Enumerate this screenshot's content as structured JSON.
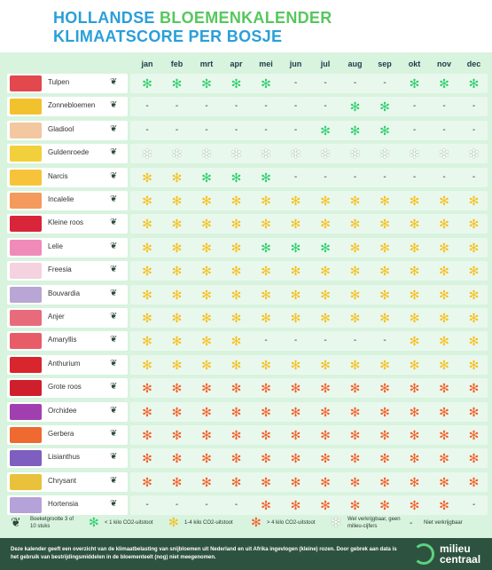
{
  "title": {
    "line1_a": "HOLLANDSE",
    "line1_b": "BLOEMENKALENDER",
    "line2": "KLIMAATSCORE PER BOSJE"
  },
  "months": [
    "jan",
    "feb",
    "mrt",
    "apr",
    "mei",
    "jun",
    "jul",
    "aug",
    "sep",
    "okt",
    "nov",
    "dec"
  ],
  "flowers": [
    {
      "name": "Tulpen",
      "thumb": "#e2484d",
      "bouquet": "3",
      "s": [
        "g",
        "g",
        "g",
        "g",
        "g",
        "-",
        "-",
        "-",
        "-",
        "g",
        "g",
        "g"
      ]
    },
    {
      "name": "Zonnebloemen",
      "thumb": "#f2c12e",
      "bouquet": "3",
      "s": [
        "-",
        "-",
        "-",
        "-",
        "-",
        "-",
        "-",
        "g",
        "g",
        "-",
        "-",
        "-"
      ]
    },
    {
      "name": "Gladiool",
      "thumb": "#f3c7a0",
      "bouquet": "3",
      "s": [
        "-",
        "-",
        "-",
        "-",
        "-",
        "-",
        "g",
        "g",
        "g",
        "-",
        "-",
        "-"
      ]
    },
    {
      "name": "Guldenroede",
      "thumb": "#f2d03c",
      "bouquet": "10",
      "s": [
        "w",
        "w",
        "w",
        "w",
        "w",
        "w",
        "w",
        "w",
        "w",
        "w",
        "w",
        "w"
      ]
    },
    {
      "name": "Narcis",
      "thumb": "#f6c33a",
      "bouquet": "10",
      "s": [
        "y",
        "y",
        "g",
        "g",
        "g",
        "-",
        "-",
        "-",
        "-",
        "-",
        "-",
        "-"
      ]
    },
    {
      "name": "Incalelie",
      "thumb": "#f39a5c",
      "bouquet": "10",
      "s": [
        "y",
        "y",
        "y",
        "y",
        "y",
        "y",
        "y",
        "y",
        "y",
        "y",
        "y",
        "y"
      ]
    },
    {
      "name": "Kleine roos",
      "thumb": "#d9253a",
      "bouquet": "10",
      "s": [
        "y",
        "y",
        "y",
        "y",
        "y",
        "y",
        "y",
        "y",
        "y",
        "y",
        "y",
        "y"
      ]
    },
    {
      "name": "Lelie",
      "thumb": "#f08ab8",
      "bouquet": "3",
      "s": [
        "y",
        "y",
        "y",
        "y",
        "g",
        "g",
        "g",
        "y",
        "y",
        "y",
        "y",
        "y"
      ]
    },
    {
      "name": "Freesia",
      "thumb": "#f4d2e0",
      "bouquet": "10",
      "s": [
        "y",
        "y",
        "y",
        "y",
        "y",
        "y",
        "y",
        "y",
        "y",
        "y",
        "y",
        "y"
      ]
    },
    {
      "name": "Bouvardia",
      "thumb": "#b9a6d4",
      "bouquet": "10",
      "s": [
        "y",
        "y",
        "y",
        "y",
        "y",
        "y",
        "y",
        "y",
        "y",
        "y",
        "y",
        "y"
      ]
    },
    {
      "name": "Anjer",
      "thumb": "#e86b7c",
      "bouquet": "10",
      "s": [
        "y",
        "y",
        "y",
        "y",
        "y",
        "y",
        "y",
        "y",
        "y",
        "y",
        "y",
        "y"
      ]
    },
    {
      "name": "Amaryllis",
      "thumb": "#e85c68",
      "bouquet": "3",
      "s": [
        "y",
        "y",
        "y",
        "y",
        "-",
        "-",
        "-",
        "-",
        "-",
        "y",
        "y",
        "y"
      ]
    },
    {
      "name": "Anthurium",
      "thumb": "#d8252e",
      "bouquet": "3",
      "s": [
        "y",
        "y",
        "y",
        "y",
        "y",
        "y",
        "y",
        "y",
        "y",
        "y",
        "y",
        "y"
      ]
    },
    {
      "name": "Grote roos",
      "thumb": "#cf1f2d",
      "bouquet": "10",
      "s": [
        "o",
        "o",
        "o",
        "o",
        "o",
        "o",
        "o",
        "o",
        "o",
        "o",
        "o",
        "o"
      ]
    },
    {
      "name": "Orchidee",
      "thumb": "#a23fb0",
      "bouquet": "3",
      "s": [
        "o",
        "o",
        "o",
        "o",
        "o",
        "o",
        "o",
        "o",
        "o",
        "o",
        "o",
        "o"
      ]
    },
    {
      "name": "Gerbera",
      "thumb": "#ef6a30",
      "bouquet": "10",
      "s": [
        "o",
        "o",
        "o",
        "o",
        "o",
        "o",
        "o",
        "o",
        "o",
        "o",
        "o",
        "o"
      ]
    },
    {
      "name": "Lisianthus",
      "thumb": "#7e5fbf",
      "bouquet": "10",
      "s": [
        "o",
        "o",
        "o",
        "o",
        "o",
        "o",
        "o",
        "o",
        "o",
        "o",
        "o",
        "o"
      ]
    },
    {
      "name": "Chrysant",
      "thumb": "#e9c13a",
      "bouquet": "10",
      "s": [
        "o",
        "o",
        "o",
        "o",
        "o",
        "o",
        "o",
        "o",
        "o",
        "o",
        "o",
        "o"
      ]
    },
    {
      "name": "Hortensia",
      "thumb": "#b4a2d8",
      "bouquet": "3",
      "s": [
        "-",
        "-",
        "-",
        "-",
        "o",
        "o",
        "o",
        "o",
        "o",
        "o",
        "o",
        "-"
      ]
    }
  ],
  "symbols": {
    "g": "✻",
    "y": "✻",
    "o": "✻",
    "w": "✻",
    "-": "-"
  },
  "colors": {
    "green": "#2fcf6e",
    "yellow": "#f6c01d",
    "orange": "#f4602a",
    "panel": "#d8f3de",
    "footer": "#2d5340"
  },
  "legend": {
    "bouquet_label": "Boeketgrootte 3 of 10 stuks",
    "green_label": "< 1 kilo CO2-uitstoot",
    "yellow_label": "1-4 kilo CO2-uitstoot",
    "orange_label": "> 4 kilo CO2-uitstoot",
    "white_label": "Wel verkrijgbaar, geen milieu-cijfers",
    "dash_label": "Niet verkrijgbaar"
  },
  "footer": {
    "text": "Deze kalender geeft een overzicht van de klimaatbelasting van snijbloemen uit Nederland en uit Afrika ingevlogen (kleine) rozen. Door gebrek aan data is het gebruik van bestrijdingsmiddelen in de bloementeelt (nog) niet meegenomen.",
    "logo_line1": "milieu",
    "logo_line2": "centraal"
  }
}
